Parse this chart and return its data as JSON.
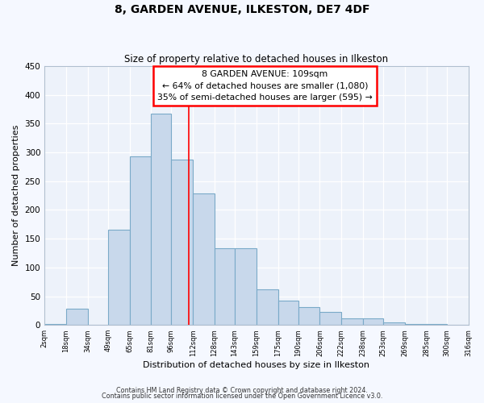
{
  "title": "8, GARDEN AVENUE, ILKESTON, DE7 4DF",
  "subtitle": "Size of property relative to detached houses in Ilkeston",
  "xlabel": "Distribution of detached houses by size in Ilkeston",
  "ylabel": "Number of detached properties",
  "bar_color": "#c8d8eb",
  "bar_edge_color": "#7aaac8",
  "background_color": "#edf2fa",
  "grid_color": "#ffffff",
  "fig_bg_color": "#f5f8ff",
  "property_line_x": 109,
  "annotation_title": "8 GARDEN AVENUE: 109sqm",
  "annotation_line1": "← 64% of detached houses are smaller (1,080)",
  "annotation_line2": "35% of semi-detached houses are larger (595) →",
  "bin_edges": [
    2,
    18,
    34,
    49,
    65,
    81,
    96,
    112,
    128,
    143,
    159,
    175,
    190,
    206,
    222,
    238,
    253,
    269,
    285,
    300,
    316
  ],
  "bin_labels": [
    "2sqm",
    "18sqm",
    "34sqm",
    "49sqm",
    "65sqm",
    "81sqm",
    "96sqm",
    "112sqm",
    "128sqm",
    "143sqm",
    "159sqm",
    "175sqm",
    "190sqm",
    "206sqm",
    "222sqm",
    "238sqm",
    "253sqm",
    "269sqm",
    "285sqm",
    "300sqm",
    "316sqm"
  ],
  "counts": [
    1,
    28,
    0,
    165,
    293,
    367,
    288,
    228,
    134,
    134,
    62,
    43,
    31,
    23,
    12,
    12,
    5,
    2,
    1,
    0
  ],
  "ylim": [
    0,
    450
  ],
  "yticks": [
    0,
    50,
    100,
    150,
    200,
    250,
    300,
    350,
    400,
    450
  ],
  "footer1": "Contains HM Land Registry data © Crown copyright and database right 2024.",
  "footer2": "Contains public sector information licensed under the Open Government Licence v3.0."
}
